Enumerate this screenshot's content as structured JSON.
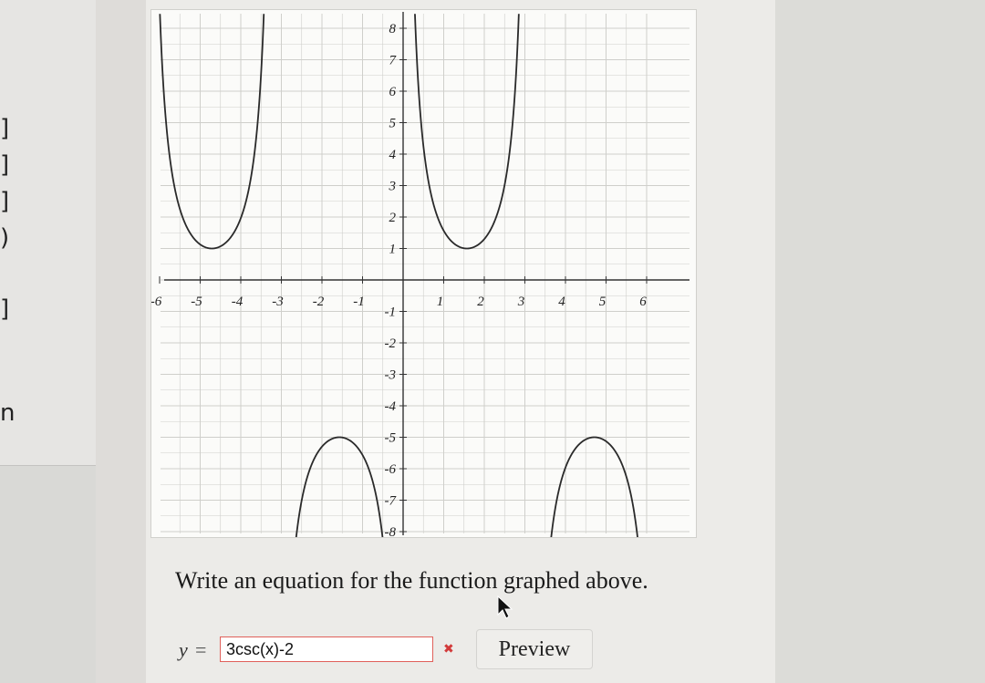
{
  "sidebar": {
    "fragments": [
      "]",
      "]",
      "]",
      ")",
      "]",
      "n"
    ]
  },
  "graph": {
    "x_ticks": [
      "-6",
      "-5",
      "-4",
      "-3",
      "-2",
      "-1",
      "1",
      "2",
      "3",
      "4",
      "5",
      "6"
    ],
    "y_ticks_pos": [
      "8",
      "7",
      "6",
      "5",
      "4",
      "3",
      "2",
      "1"
    ],
    "y_ticks_neg": [
      "-1",
      "-2",
      "-3",
      "-4",
      "-5",
      "-6",
      "-7",
      "-8"
    ],
    "curve_color": "#2a2a2a",
    "grid_color": "#cfcfcb"
  },
  "question": {
    "text": "Write an equation for the function graphed above."
  },
  "answer": {
    "prefix": "y",
    "equals": "=",
    "value": "3csc(x)-2",
    "error_mark": "✖"
  },
  "preview_button": {
    "label": "Preview"
  }
}
